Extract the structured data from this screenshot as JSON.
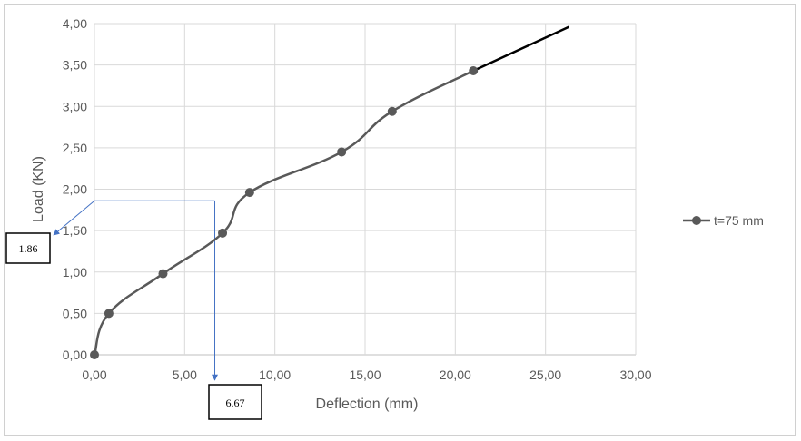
{
  "chart_data": {
    "type": "line",
    "xlabel": "Deflection (mm)",
    "ylabel": "Load (KN)",
    "xlim": [
      0,
      30
    ],
    "ylim": [
      0,
      4
    ],
    "x_ticks": [
      "0,00",
      "5,00",
      "10,00",
      "15,00",
      "20,00",
      "25,00",
      "30,00"
    ],
    "y_ticks": [
      "0,00",
      "0,50",
      "1,00",
      "1,50",
      "2,00",
      "2,50",
      "3,00",
      "3,50",
      "4,00"
    ],
    "grid": true,
    "legend_position": "right",
    "series": [
      {
        "name": "t=75 mm",
        "color": "#595959",
        "points": [
          {
            "x": 0.0,
            "y": 0.0
          },
          {
            "x": 0.8,
            "y": 0.5
          },
          {
            "x": 3.8,
            "y": 0.98
          },
          {
            "x": 7.1,
            "y": 1.47
          },
          {
            "x": 8.6,
            "y": 1.96
          },
          {
            "x": 13.7,
            "y": 2.45
          },
          {
            "x": 16.5,
            "y": 2.94
          },
          {
            "x": 21.0,
            "y": 3.43
          }
        ]
      }
    ],
    "extension_line": {
      "color": "#000000",
      "from": {
        "x": 21.0,
        "y": 3.43
      },
      "to": {
        "x": 26.3,
        "y": 3.96
      }
    },
    "annotations": {
      "guide_color": "#4472c4",
      "x_value": 6.67,
      "y_value": 1.86,
      "x_label": "6.67",
      "y_label": "1.86"
    }
  }
}
